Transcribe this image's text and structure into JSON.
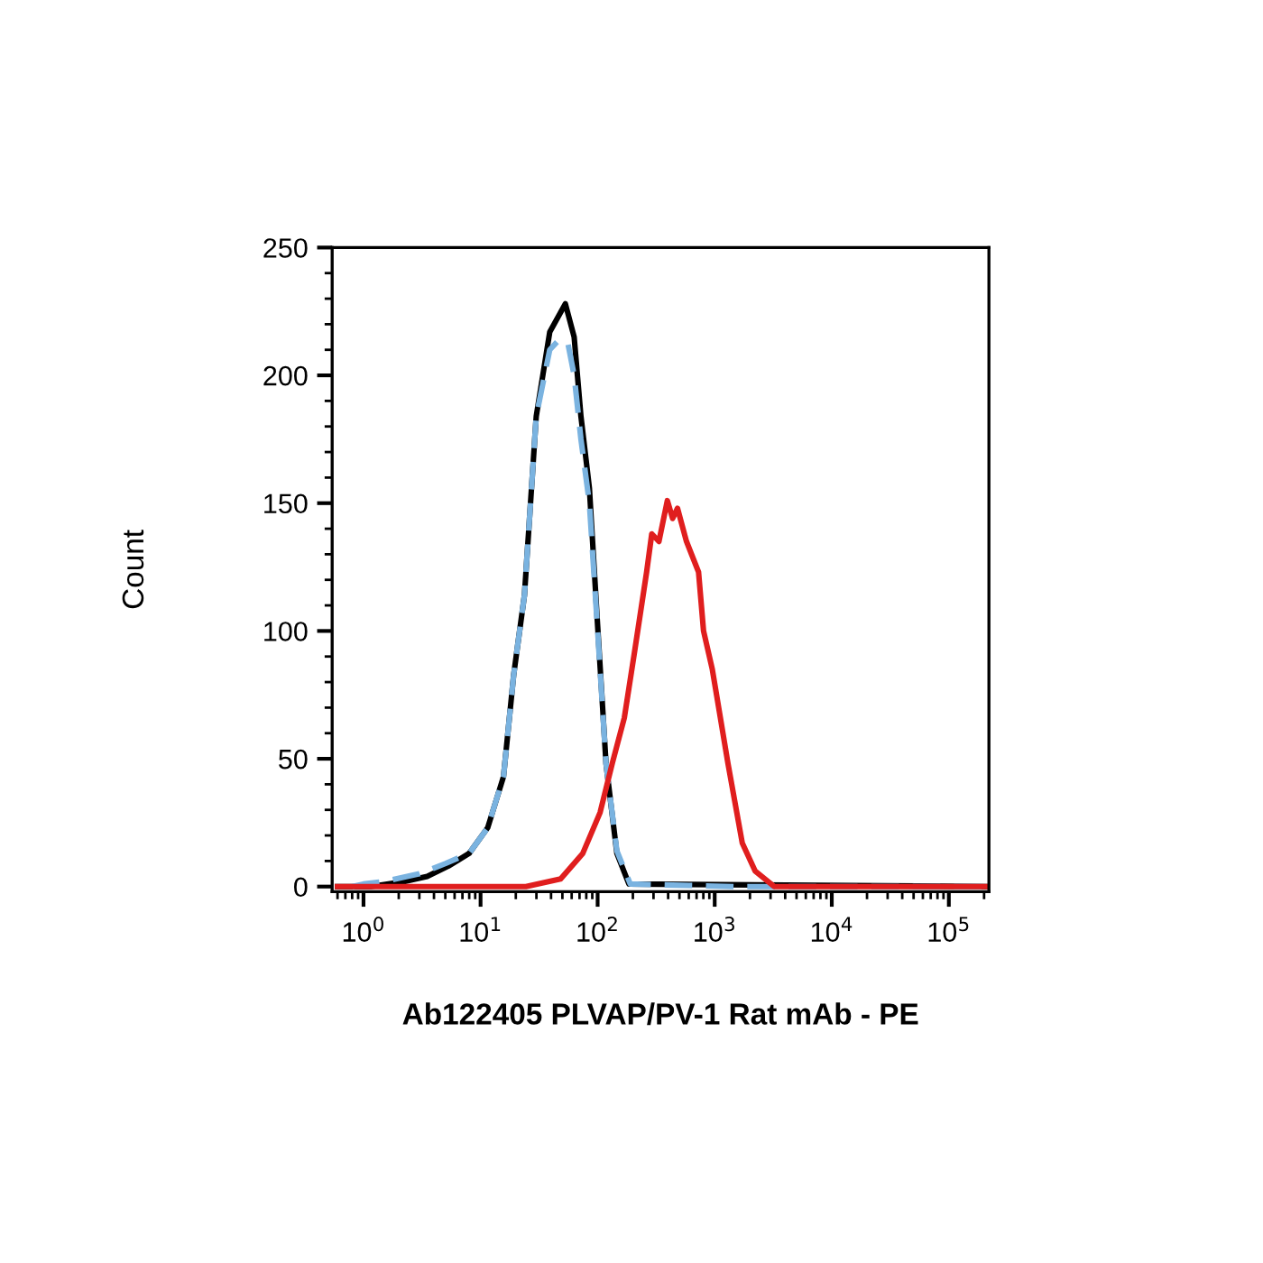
{
  "chart_data": {
    "type": "line",
    "xlabel": "Ab122405 PLVAP/PV-1 Rat mAb - PE",
    "ylabel": "Count",
    "log": "x",
    "xlim": [
      0.54,
      220000
    ],
    "ylim": [
      -2,
      250
    ],
    "xticks": [
      {
        "value": 1,
        "label": "10$^{0}$"
      },
      {
        "value": 10,
        "label": "10$^{1}$"
      },
      {
        "value": 100,
        "label": "10$^{2}$"
      },
      {
        "value": 1000,
        "label": "10$^{3}$"
      },
      {
        "value": 10000,
        "label": "10$^{4}$"
      },
      {
        "value": 100000,
        "label": "10$^{5}$"
      }
    ],
    "yticks": [
      0,
      50,
      100,
      150,
      200,
      250
    ],
    "grid": false,
    "series": [
      {
        "color": "#000000",
        "line_style": "solid",
        "x": [
          0.6,
          1.15,
          2.26,
          3.5,
          5.3,
          8.0,
          11.5,
          15.7,
          19.2,
          23.7,
          29.9,
          39,
          53,
          63,
          72,
          85,
          100,
          118,
          146,
          185,
          220000
        ],
        "values": [
          0,
          0,
          2,
          4,
          8,
          13,
          23,
          43,
          83,
          114,
          184,
          217,
          228,
          215,
          184,
          156,
          102,
          48,
          13,
          1,
          0
        ]
      },
      {
        "color": "#7ab3e0",
        "line_style": "dashed",
        "x": [
          0.8,
          1.0,
          1.5,
          3.0,
          5.0,
          8.0,
          11.5,
          15.7,
          19.2,
          23.7,
          29.9,
          39,
          47,
          56,
          63,
          72,
          85,
          100,
          118,
          146,
          190,
          1500,
          220000
        ],
        "values": [
          0,
          1,
          2,
          5,
          9,
          13,
          23,
          43,
          83,
          114,
          184,
          210,
          214,
          212,
          200,
          175,
          150,
          100,
          48,
          14,
          1,
          0,
          0
        ]
      },
      {
        "color": "#e01e1e",
        "line_style": "solid",
        "x": [
          0.6,
          24.4,
          48.3,
          74.7,
          105,
          133,
          169,
          207,
          262,
          290,
          334,
          394,
          437,
          481,
          574,
          728,
          803,
          954,
          1300,
          1720,
          2220,
          3220,
          220000
        ],
        "values": [
          0,
          0,
          3,
          13,
          29,
          48,
          66,
          92,
          123,
          138,
          135,
          151,
          144,
          148,
          135,
          123,
          100,
          85,
          48,
          17,
          6,
          0,
          0
        ]
      }
    ]
  }
}
